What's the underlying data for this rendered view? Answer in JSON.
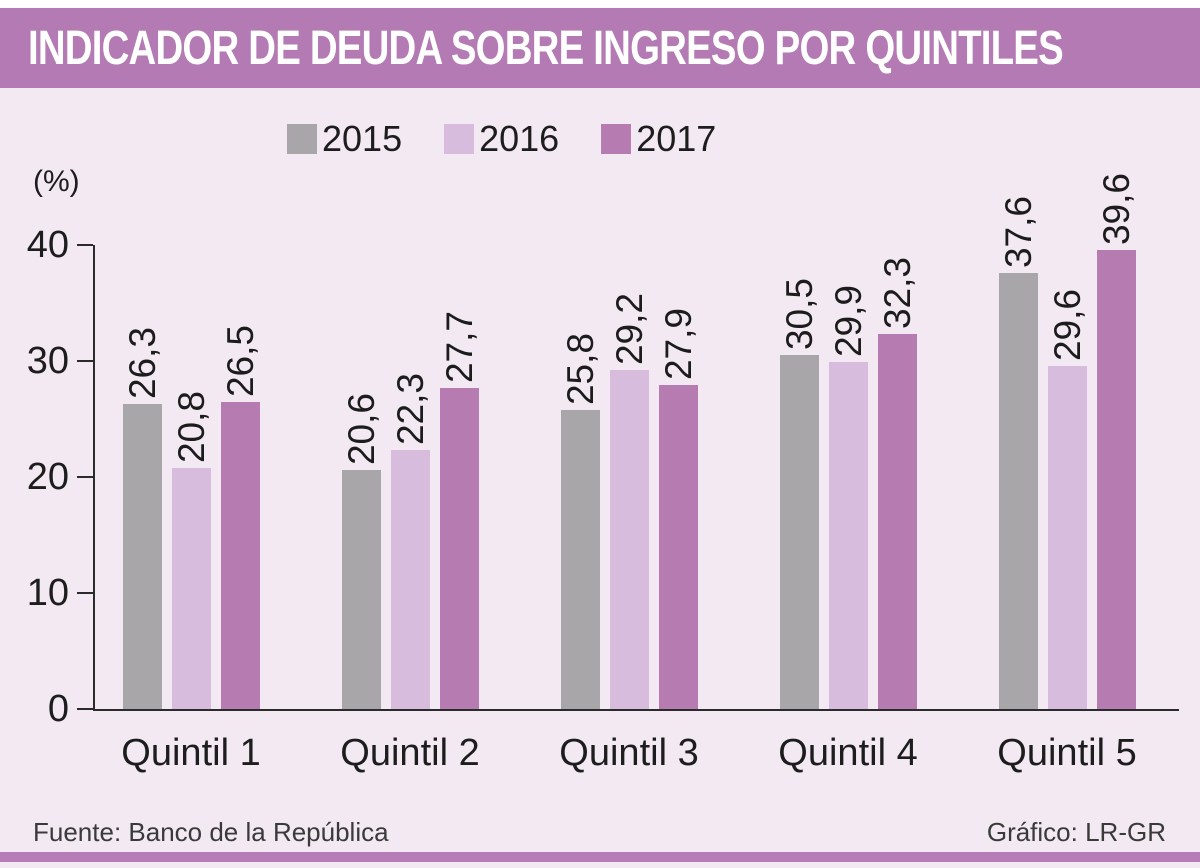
{
  "header": {
    "title": "INDICADOR DE DEUDA SOBRE INGRESO POR QUINTILES"
  },
  "chart_data": {
    "type": "bar",
    "title": "INDICADOR DE DEUDA SOBRE INGRESO POR QUINTILES",
    "ylabel": "(%)",
    "ylim": [
      0,
      40
    ],
    "yticks": [
      0,
      10,
      20,
      30,
      40
    ],
    "grid": false,
    "legend_position": "top",
    "value_label_format": "decimal-comma, rotated 90deg",
    "categories": [
      "Quintil 1",
      "Quintil 2",
      "Quintil 3",
      "Quintil 4",
      "Quintil 5"
    ],
    "series": [
      {
        "name": "2015",
        "color": "#a9a6a9",
        "values": [
          26.3,
          20.6,
          25.8,
          30.5,
          37.6
        ]
      },
      {
        "name": "2016",
        "color": "#d7bcdd",
        "values": [
          20.8,
          22.3,
          29.2,
          29.9,
          29.6
        ]
      },
      {
        "name": "2017",
        "color": "#b67bb1",
        "values": [
          26.5,
          27.7,
          27.9,
          32.3,
          39.6
        ]
      }
    ]
  },
  "footer": {
    "source": "Fuente: Banco de la República",
    "credit": "Gráfico: LR-GR"
  },
  "colors": {
    "header_bg": "#b37ab3",
    "page_bg": "#f3e9f3",
    "bottom_strip": "#b77cb7",
    "axis": "#2b2b2b",
    "text": "#1d1d1d",
    "footer_text": "#3a3a3a"
  }
}
